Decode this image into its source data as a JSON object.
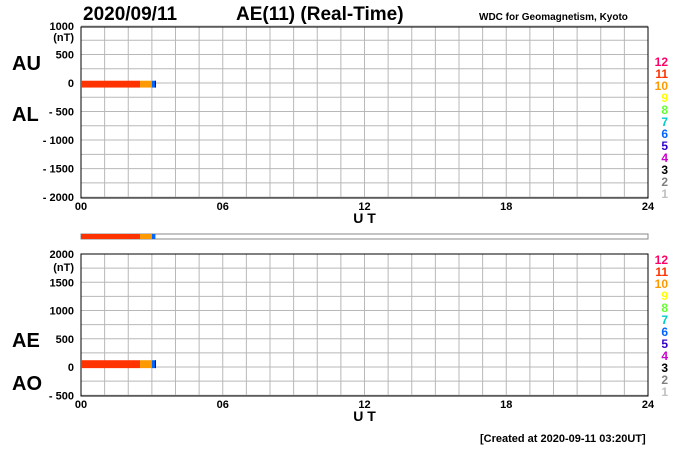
{
  "header": {
    "date": "2020/09/11",
    "title": "AE(11) (Real-Time)",
    "source": "WDC for Geomagnetism, Kyoto",
    "created": "[Created at 2020-09-11 03:20UT]"
  },
  "colors": {
    "stations": [
      "#c0c0c0",
      "#808080",
      "#000000",
      "#cc00cc",
      "#3300cc",
      "#0066ff",
      "#00cccc",
      "#66ff33",
      "#ffff00",
      "#ff9900",
      "#ff3300",
      "#ff0066"
    ]
  },
  "legend": {
    "station_counts": [
      "1",
      "2",
      "3",
      "4",
      "5",
      "6",
      "7",
      "8",
      "9",
      "10",
      "11",
      "12"
    ]
  },
  "chart_data": [
    {
      "type": "bar",
      "panel": "AU/AL",
      "labels": {
        "upper": "AU",
        "lower": "AL"
      },
      "unit_label": "(nT)",
      "xlabel": "U T",
      "xlim": [
        0,
        24
      ],
      "ylim": [
        -2000,
        1000
      ],
      "x_tick_labels": [
        "00",
        "06",
        "12",
        "18",
        "24"
      ],
      "y_tick_labels": [
        "1000",
        "500",
        "0",
        "- 500",
        "- 1000",
        "- 1500",
        "- 2000"
      ],
      "y_tick_values": [
        1000,
        500,
        0,
        -500,
        -1000,
        -1500,
        -2000
      ],
      "grid": true,
      "data_x_range_hours": [
        0,
        3.2
      ],
      "au_approx_nT": 40,
      "al_approx_nT": -80,
      "station_count_segments": [
        {
          "start": 0.0,
          "end": 2.5,
          "count": 11
        },
        {
          "start": 2.5,
          "end": 3.0,
          "count": 10
        },
        {
          "start": 3.0,
          "end": 3.15,
          "count": 6
        }
      ]
    },
    {
      "type": "bar",
      "panel": "AE/AO",
      "labels": {
        "upper": "AE",
        "lower": "AO"
      },
      "unit_label": "(nT)",
      "xlabel": "U T",
      "xlim": [
        0,
        24
      ],
      "ylim": [
        -500,
        2000
      ],
      "x_tick_labels": [
        "00",
        "06",
        "12",
        "18",
        "24"
      ],
      "y_tick_labels": [
        "2000",
        "(nT)",
        "1500",
        "1000",
        "500",
        "0",
        "- 500"
      ],
      "y_tick_values": [
        2000,
        1500,
        1000,
        500,
        0,
        -500
      ],
      "grid": true,
      "data_x_range_hours": [
        0,
        3.2
      ],
      "ae_approx_nT": 120,
      "ao_approx_nT": -20,
      "station_count_segments": [
        {
          "start": 0.0,
          "end": 2.5,
          "count": 11
        },
        {
          "start": 2.5,
          "end": 3.0,
          "count": 10
        },
        {
          "start": 3.0,
          "end": 3.15,
          "count": 6
        }
      ]
    }
  ],
  "status_strip": {
    "segments": [
      {
        "start": 0.0,
        "end": 2.5,
        "count": 11
      },
      {
        "start": 2.5,
        "end": 3.0,
        "count": 10
      },
      {
        "start": 3.0,
        "end": 3.15,
        "count": 6
      }
    ]
  }
}
